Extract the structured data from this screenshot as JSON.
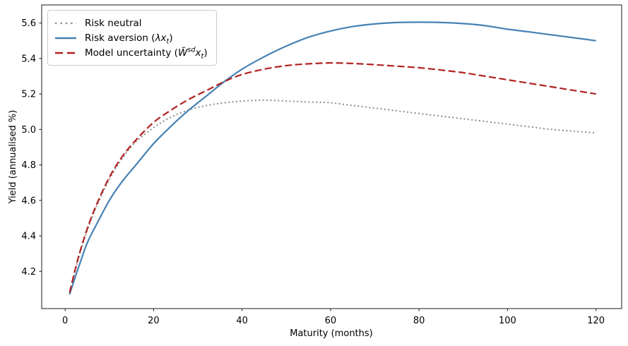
{
  "chart_data": {
    "type": "line",
    "title": "",
    "xlabel": "Maturity (months)",
    "ylabel": "Yield (annualised %)",
    "x_ticks": [
      0,
      20,
      40,
      60,
      80,
      100,
      120
    ],
    "y_ticks": [
      4.2,
      4.4,
      4.6,
      4.8,
      5.0,
      5.2,
      5.4,
      5.6
    ],
    "xlim": [
      -5.3,
      125.8
    ],
    "ylim": [
      3.99,
      5.702
    ],
    "grid": false,
    "legend_position": "upper-left",
    "axis_color": "#1a1a1a",
    "x": [
      1,
      3,
      5,
      7,
      10,
      13,
      16,
      20,
      24,
      28,
      32,
      36,
      40,
      45,
      50,
      55,
      60,
      65,
      70,
      75,
      80,
      85,
      90,
      95,
      100,
      105,
      110,
      115,
      120
    ],
    "series": [
      {
        "name": "risk-neutral",
        "color": "#8c8c8c",
        "style": "dotted",
        "width": 2,
        "label_parts": [
          {
            "text": "Risk neutral"
          }
        ],
        "values": [
          4.07,
          4.27,
          4.43,
          4.56,
          4.72,
          4.84,
          4.93,
          5.01,
          5.07,
          5.11,
          5.135,
          5.15,
          5.16,
          5.165,
          5.16,
          5.155,
          5.15,
          5.135,
          5.12,
          5.105,
          5.09,
          5.075,
          5.06,
          5.045,
          5.03,
          5.015,
          5.0,
          4.99,
          4.98
        ]
      },
      {
        "name": "risk-aversion",
        "color": "#4682b4",
        "style": "solid",
        "width": 2.2,
        "label_parts": [
          {
            "text": "Risk aversion ("
          },
          {
            "text": "λx",
            "italic": true
          },
          {
            "text": "t",
            "italic": true,
            "script": "sub"
          },
          {
            "text": ")"
          }
        ],
        "values": [
          4.07,
          4.22,
          4.36,
          4.46,
          4.6,
          4.71,
          4.8,
          4.92,
          5.02,
          5.11,
          5.19,
          5.27,
          5.34,
          5.41,
          5.47,
          5.52,
          5.555,
          5.58,
          5.595,
          5.603,
          5.605,
          5.603,
          5.597,
          5.585,
          5.565,
          5.55,
          5.533,
          5.517,
          5.5
        ]
      },
      {
        "name": "model-uncertainty",
        "color": "#b22222",
        "style": "dashed",
        "width": 2.2,
        "label_parts": [
          {
            "text": "Model uncertainty ("
          },
          {
            "text": "W̃",
            "italic": true
          },
          {
            "text": "sd",
            "italic": true,
            "script": "sup"
          },
          {
            "text": "x",
            "italic": true
          },
          {
            "text": "t",
            "italic": true,
            "script": "sub"
          },
          {
            "text": ")"
          }
        ],
        "values": [
          4.08,
          4.28,
          4.44,
          4.57,
          4.73,
          4.85,
          4.94,
          5.04,
          5.11,
          5.17,
          5.22,
          5.27,
          5.31,
          5.34,
          5.36,
          5.37,
          5.375,
          5.372,
          5.365,
          5.357,
          5.348,
          5.335,
          5.32,
          5.3,
          5.28,
          5.26,
          5.24,
          5.22,
          5.2
        ]
      }
    ]
  }
}
